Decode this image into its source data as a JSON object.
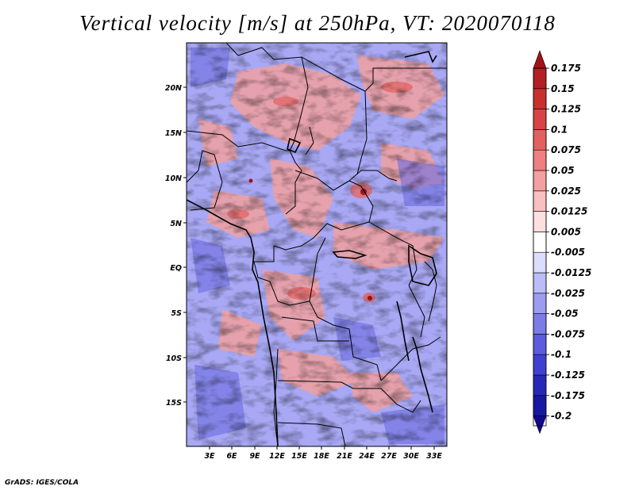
{
  "title": "Vertical velocity [m/s] at 250hPa, VT: 2020070118",
  "credit": "GrADS: IGES/COLA",
  "map": {
    "lon_ticks": [
      "3E",
      "6E",
      "9E",
      "12E",
      "15E",
      "18E",
      "21E",
      "24E",
      "27E",
      "30E",
      "33E"
    ],
    "lat_ticks": [
      "20N",
      "15N",
      "10N",
      "5N",
      "EQ",
      "5S",
      "10S",
      "15S"
    ],
    "field_colors": {
      "positive_strong": "#b41e26",
      "positive": "#ee8c8c",
      "positive_light": "#f8cccc",
      "negative_light": "#ccccf8",
      "negative": "#8a8af0",
      "negative_strong": "#3838c8"
    }
  },
  "colorbar": {
    "labels": [
      "0.175",
      "0.15",
      "0.125",
      "0.1",
      "0.075",
      "0.05",
      "0.025",
      "0.0125",
      "0.005",
      "-0.005",
      "-0.0125",
      "-0.025",
      "-0.05",
      "-0.075",
      "-0.1",
      "-0.125",
      "-0.175",
      "-0.2"
    ],
    "colors": [
      "#a01418",
      "#b41e26",
      "#c8302e",
      "#d84444",
      "#e46060",
      "#ee8080",
      "#f4a0a0",
      "#f8c0c0",
      "#fce0e0",
      "#ffffff",
      "#dcdcfc",
      "#bcbcf8",
      "#9c9cf0",
      "#7c7ce8",
      "#5c5cdc",
      "#4040d0",
      "#2828b8",
      "#1818a0",
      "#100890"
    ]
  }
}
